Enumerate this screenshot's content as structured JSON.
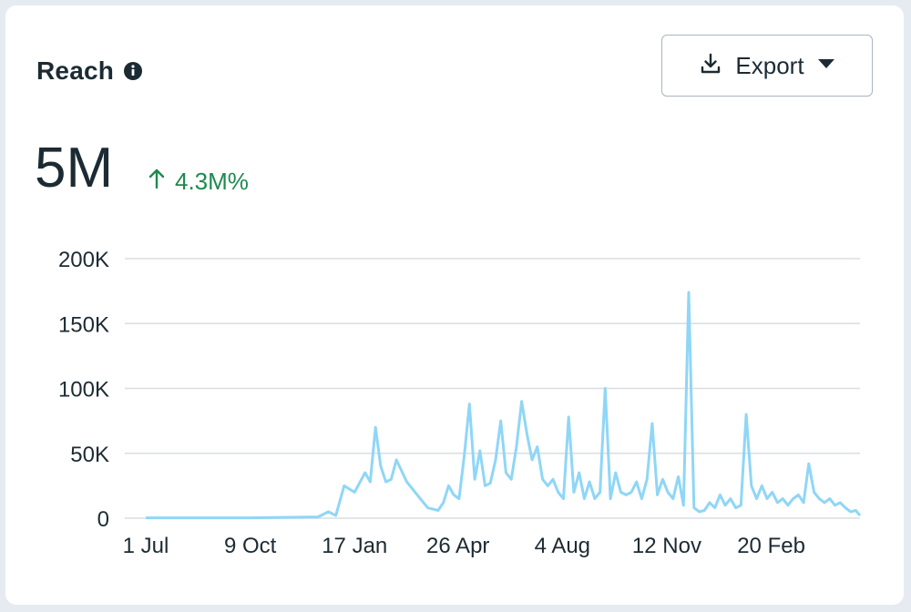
{
  "header": {
    "title": "Reach",
    "info_icon": "info-icon",
    "export_label": "Export",
    "export_icon": "download-icon",
    "dropdown_icon": "caret-down-icon"
  },
  "summary": {
    "value": "5M",
    "change_icon": "arrow-up-icon",
    "change": "4.3M%",
    "change_color": "#1d8a4e"
  },
  "chart_data": {
    "type": "line",
    "title": "",
    "xlabel": "",
    "ylabel": "",
    "ylim": [
      0,
      200000
    ],
    "grid": true,
    "line_color": "#8fd6f7",
    "y_ticks": [
      "0",
      "50K",
      "100K",
      "150K",
      "200K"
    ],
    "y_tick_values": [
      0,
      50000,
      100000,
      150000,
      200000
    ],
    "x_ticks": [
      "1 Jul",
      "9 Oct",
      "17 Jan",
      "26 Apr",
      "4 Aug",
      "12 Nov",
      "20 Feb"
    ],
    "x_tick_positions": [
      0,
      100,
      200,
      299,
      399,
      499,
      599
    ],
    "x_extent": [
      0,
      684
    ],
    "x_unit": "days",
    "x": [
      0,
      100,
      165,
      175,
      182,
      190,
      200,
      210,
      215,
      220,
      225,
      230,
      235,
      240,
      250,
      260,
      270,
      280,
      285,
      290,
      295,
      300,
      305,
      310,
      315,
      320,
      325,
      330,
      335,
      340,
      345,
      350,
      355,
      360,
      365,
      370,
      375,
      380,
      385,
      390,
      395,
      400,
      405,
      410,
      415,
      420,
      425,
      430,
      435,
      440,
      445,
      450,
      455,
      460,
      465,
      470,
      475,
      480,
      485,
      490,
      495,
      500,
      505,
      510,
      515,
      520,
      525,
      530,
      535,
      540,
      545,
      550,
      555,
      560,
      565,
      570,
      575,
      580,
      585,
      590,
      595,
      600,
      605,
      610,
      615,
      620,
      625,
      630,
      635,
      640,
      645,
      650,
      655,
      660,
      665,
      670,
      675,
      680,
      684
    ],
    "y": [
      300,
      300,
      1000,
      5000,
      2000,
      25000,
      20000,
      35000,
      28000,
      70000,
      40000,
      28000,
      30000,
      45000,
      28000,
      18000,
      8000,
      6000,
      12000,
      25000,
      18000,
      15000,
      48000,
      88000,
      30000,
      52000,
      25000,
      27000,
      45000,
      75000,
      35000,
      30000,
      55000,
      90000,
      65000,
      45000,
      55000,
      30000,
      25000,
      30000,
      20000,
      15000,
      78000,
      20000,
      35000,
      15000,
      28000,
      15000,
      20000,
      100000,
      15000,
      35000,
      20000,
      18000,
      20000,
      28000,
      15000,
      30000,
      73000,
      18000,
      30000,
      20000,
      15000,
      32000,
      10000,
      174000,
      8000,
      5000,
      6000,
      12000,
      8000,
      18000,
      10000,
      15000,
      8000,
      10000,
      80000,
      25000,
      15000,
      25000,
      15000,
      20000,
      12000,
      15000,
      10000,
      15000,
      18000,
      12000,
      42000,
      20000,
      15000,
      12000,
      15000,
      10000,
      12000,
      8000,
      5000,
      6000,
      2000
    ]
  }
}
